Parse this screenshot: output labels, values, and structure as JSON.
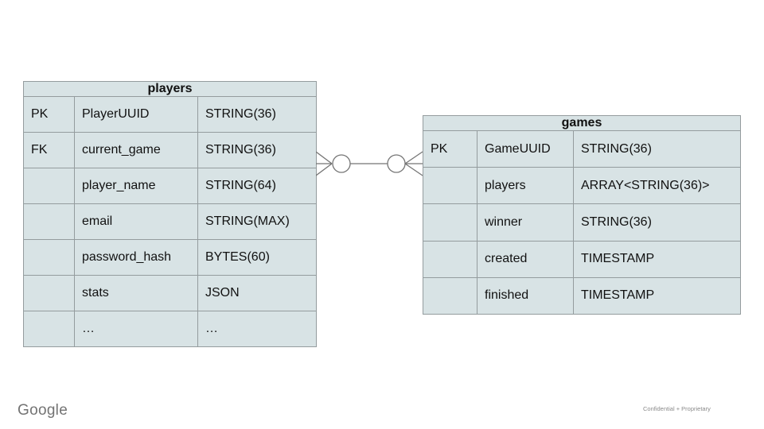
{
  "footer": {
    "logo_text": "Google",
    "confidential_text": "Confidential + Proprietary"
  },
  "colors": {
    "cell_fill": "#d8e3e5",
    "cell_border": "#949c9e",
    "text": "#111111",
    "connector": "#757575",
    "logo_gray": "#737373",
    "footer_gray": "#8a8a8a"
  },
  "diagram": {
    "type": "entity-relationship",
    "relationship": {
      "between": [
        "players.current_game",
        "games.GameUUID"
      ],
      "notation": "crow-foot",
      "cardinality": "zero-or-many to zero-or-many"
    },
    "tables": [
      {
        "name": "players",
        "rows": [
          {
            "key": "PK",
            "field": "PlayerUUID",
            "type": "STRING(36)",
            "bold": true
          },
          {
            "key": "FK",
            "field": "current_game",
            "type": "STRING(36)",
            "bold": false
          },
          {
            "key": "",
            "field": "player_name",
            "type": "STRING(64)",
            "bold": false
          },
          {
            "key": "",
            "field": "email",
            "type": "STRING(MAX)",
            "bold": false
          },
          {
            "key": "",
            "field": "password_hash",
            "type": "BYTES(60)",
            "bold": false
          },
          {
            "key": "",
            "field": "stats",
            "type": "JSON",
            "bold": false
          },
          {
            "key": "",
            "field": "…",
            "type": "…",
            "bold": false
          }
        ]
      },
      {
        "name": "games",
        "rows": [
          {
            "key": "PK",
            "field": "GameUUID",
            "type": "STRING(36)",
            "bold": true
          },
          {
            "key": "",
            "field": "players",
            "type": "ARRAY<STRING(36)>",
            "bold": false
          },
          {
            "key": "",
            "field": "winner",
            "type": "STRING(36)",
            "bold": false
          },
          {
            "key": "",
            "field": "created",
            "type": "TIMESTAMP",
            "bold": false
          },
          {
            "key": "",
            "field": "finished",
            "type": "TIMESTAMP",
            "bold": false
          }
        ]
      }
    ]
  }
}
